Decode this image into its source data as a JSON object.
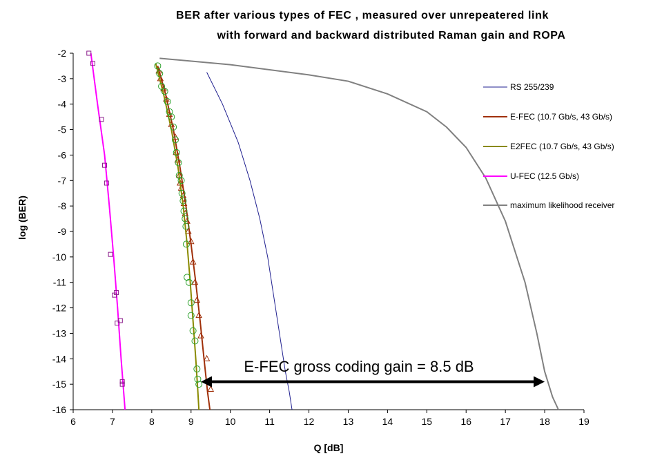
{
  "chart_data": {
    "type": "scatter",
    "title_line1": "BER after various types of FEC , measured over unrepeatered link",
    "title_line2": "with forward and backward distributed Raman gain and ROPA",
    "xlabel": "Q [dB]",
    "ylabel": "log (BER)",
    "xlim": [
      6,
      19
    ],
    "ylim": [
      -16,
      -2
    ],
    "xticks": [
      "6",
      "7",
      "8",
      "9",
      "10",
      "11",
      "12",
      "13",
      "14",
      "15",
      "16",
      "17",
      "18",
      "19"
    ],
    "yticks": [
      "-2",
      "-3",
      "-4",
      "-5",
      "-6",
      "-7",
      "-8",
      "-9",
      "-10",
      "-11",
      "-12",
      "-13",
      "-14",
      "-15",
      "-16"
    ],
    "grid": false,
    "legend_position": "right",
    "annotation": {
      "text": "E-FEC gross coding gain = 8.5 dB",
      "from_x": 9.25,
      "to_x": 18.0,
      "y": -14.9
    },
    "series": [
      {
        "name": "RS 255/239",
        "kind": "line",
        "color": "#1f1f8f",
        "points": [
          [
            9.4,
            -2.75
          ],
          [
            9.8,
            -4.0
          ],
          [
            10.2,
            -5.5
          ],
          [
            10.5,
            -7.0
          ],
          [
            10.75,
            -8.5
          ],
          [
            10.95,
            -10.0
          ],
          [
            11.1,
            -11.5
          ],
          [
            11.25,
            -13.0
          ],
          [
            11.4,
            -14.5
          ],
          [
            11.5,
            -15.3
          ],
          [
            11.57,
            -16.0
          ]
        ]
      },
      {
        "name": "E-FEC (10.7 Gb/s, 43 Gb/s)",
        "kind": "line+markers",
        "marker": "triangle",
        "color": "#a0300a",
        "line": [
          [
            8.15,
            -2.5
          ],
          [
            8.35,
            -3.6
          ],
          [
            8.55,
            -5.0
          ],
          [
            8.72,
            -6.5
          ],
          [
            8.87,
            -8.0
          ],
          [
            9.0,
            -9.5
          ],
          [
            9.12,
            -11.0
          ],
          [
            9.23,
            -12.5
          ],
          [
            9.33,
            -14.0
          ],
          [
            9.42,
            -15.3
          ],
          [
            9.48,
            -16.0
          ]
        ],
        "points": [
          [
            8.18,
            -2.7
          ],
          [
            8.22,
            -3.0
          ],
          [
            8.3,
            -3.4
          ],
          [
            8.37,
            -3.8
          ],
          [
            8.45,
            -4.4
          ],
          [
            8.5,
            -4.8
          ],
          [
            8.6,
            -5.3
          ],
          [
            8.62,
            -5.9
          ],
          [
            8.66,
            -6.2
          ],
          [
            8.7,
            -6.8
          ],
          [
            8.72,
            -7.1
          ],
          [
            8.75,
            -7.3
          ],
          [
            8.8,
            -7.6
          ],
          [
            8.82,
            -7.9
          ],
          [
            8.85,
            -8.3
          ],
          [
            8.9,
            -8.6
          ],
          [
            8.93,
            -9.0
          ],
          [
            9.0,
            -9.4
          ],
          [
            9.05,
            -10.2
          ],
          [
            9.1,
            -11.0
          ],
          [
            9.15,
            -11.7
          ],
          [
            9.2,
            -12.3
          ],
          [
            9.25,
            -13.1
          ],
          [
            9.4,
            -14.0
          ],
          [
            9.5,
            -15.2
          ]
        ]
      },
      {
        "name": "E2FEC (10.7 Gb/s, 43 Gb/s)",
        "kind": "line+markers",
        "marker": "circle",
        "color": "#8a8a00",
        "marker_color": "#2aa02a",
        "line": [
          [
            8.1,
            -2.4
          ],
          [
            8.3,
            -3.6
          ],
          [
            8.5,
            -5.0
          ],
          [
            8.67,
            -6.5
          ],
          [
            8.8,
            -8.0
          ],
          [
            8.9,
            -9.5
          ],
          [
            8.98,
            -11.0
          ],
          [
            9.05,
            -12.5
          ],
          [
            9.12,
            -14.0
          ],
          [
            9.17,
            -15.2
          ],
          [
            9.2,
            -16.0
          ]
        ],
        "points": [
          [
            8.15,
            -2.5
          ],
          [
            8.2,
            -2.8
          ],
          [
            8.25,
            -3.3
          ],
          [
            8.33,
            -3.5
          ],
          [
            8.4,
            -3.9
          ],
          [
            8.45,
            -4.3
          ],
          [
            8.5,
            -4.5
          ],
          [
            8.55,
            -4.9
          ],
          [
            8.6,
            -5.4
          ],
          [
            8.63,
            -5.9
          ],
          [
            8.68,
            -6.3
          ],
          [
            8.7,
            -6.8
          ],
          [
            8.75,
            -7.0
          ],
          [
            8.77,
            -7.5
          ],
          [
            8.8,
            -7.8
          ],
          [
            8.82,
            -8.2
          ],
          [
            8.85,
            -8.5
          ],
          [
            8.87,
            -8.8
          ],
          [
            8.88,
            -9.5
          ],
          [
            8.9,
            -10.8
          ],
          [
            8.95,
            -11.0
          ],
          [
            9.0,
            -11.8
          ],
          [
            9.0,
            -12.3
          ],
          [
            9.05,
            -12.9
          ],
          [
            9.1,
            -13.3
          ],
          [
            9.15,
            -14.4
          ],
          [
            9.17,
            -14.8
          ],
          [
            9.2,
            -15.0
          ]
        ]
      },
      {
        "name": "U-FEC (12.5 Gb/s)",
        "kind": "line+markers",
        "marker": "square",
        "color": "#ff00ff",
        "marker_color": "#8a1a8a",
        "line": [
          [
            6.45,
            -2.0
          ],
          [
            6.62,
            -4.0
          ],
          [
            6.8,
            -6.0
          ],
          [
            6.92,
            -8.0
          ],
          [
            7.03,
            -10.0
          ],
          [
            7.13,
            -12.0
          ],
          [
            7.22,
            -14.0
          ],
          [
            7.32,
            -16.0
          ]
        ],
        "points": [
          [
            6.4,
            -2.0
          ],
          [
            6.5,
            -2.4
          ],
          [
            6.72,
            -4.6
          ],
          [
            6.8,
            -6.4
          ],
          [
            6.85,
            -7.1
          ],
          [
            6.95,
            -9.9
          ],
          [
            7.05,
            -11.5
          ],
          [
            7.1,
            -11.4
          ],
          [
            7.12,
            -12.6
          ],
          [
            7.2,
            -12.5
          ],
          [
            7.25,
            -14.9
          ],
          [
            7.25,
            -15.0
          ]
        ]
      },
      {
        "name": "maximum likelihood receiver",
        "kind": "line",
        "color": "#808080",
        "points": [
          [
            8.2,
            -2.2
          ],
          [
            10.0,
            -2.45
          ],
          [
            12.0,
            -2.85
          ],
          [
            13.0,
            -3.1
          ],
          [
            14.0,
            -3.6
          ],
          [
            15.0,
            -4.3
          ],
          [
            15.5,
            -4.9
          ],
          [
            16.0,
            -5.7
          ],
          [
            16.5,
            -6.9
          ],
          [
            17.0,
            -8.6
          ],
          [
            17.5,
            -11.0
          ],
          [
            17.8,
            -13.0
          ],
          [
            18.0,
            -14.5
          ],
          [
            18.2,
            -15.5
          ],
          [
            18.35,
            -16.0
          ]
        ]
      }
    ]
  }
}
